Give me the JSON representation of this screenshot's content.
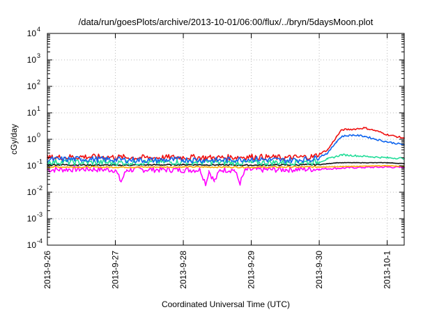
{
  "chart_data": {
    "type": "line",
    "title": "/data/run/goesPlots/archive/2013-10-01/06:00/flux/../bryn/5daysMoon.plot",
    "xlabel": "Coordinated Universal Time (UTC)",
    "ylabel": "cGy/day",
    "yscale": "log",
    "ylim": [
      0.0001,
      10000
    ],
    "xlim": [
      "2013-09-26 00:00",
      "2013-10-01 06:00"
    ],
    "grid": true,
    "legend": "none",
    "x_ticks": [
      "2013-9-26",
      "2013-9-27",
      "2013-9-28",
      "2013-9-29",
      "2013-9-30",
      "2013-10-1"
    ],
    "y_ticks": [
      {
        "base": "10",
        "exp": "-4",
        "value": 0.0001
      },
      {
        "base": "10",
        "exp": "-3",
        "value": 0.001
      },
      {
        "base": "10",
        "exp": "-2",
        "value": 0.01
      },
      {
        "base": "10",
        "exp": "-1",
        "value": 0.1
      },
      {
        "base": "10",
        "exp": "0",
        "value": 1
      },
      {
        "base": "10",
        "exp": "1",
        "value": 10
      },
      {
        "base": "10",
        "exp": "2",
        "value": 100
      },
      {
        "base": "10",
        "exp": "3",
        "value": 1000
      },
      {
        "base": "10",
        "exp": "4",
        "value": 10000
      }
    ],
    "series": [
      {
        "color": "#ff00ff",
        "points": [
          [
            "2013-09-26 00:00",
            0.07
          ],
          [
            "2013-09-26 12:00",
            0.075
          ],
          [
            "2013-09-27 00:00",
            0.07
          ],
          [
            "2013-09-27 02:00",
            0.025
          ],
          [
            "2013-09-27 04:00",
            0.07
          ],
          [
            "2013-09-27 12:00",
            0.072
          ],
          [
            "2013-09-28 00:00",
            0.07
          ],
          [
            "2013-09-28 06:00",
            0.07
          ],
          [
            "2013-09-28 08:00",
            0.02
          ],
          [
            "2013-09-28 09:00",
            0.065
          ],
          [
            "2013-09-28 11:00",
            0.025
          ],
          [
            "2013-09-28 13:00",
            0.07
          ],
          [
            "2013-09-28 18:00",
            0.07
          ],
          [
            "2013-09-28 20:00",
            0.022
          ],
          [
            "2013-09-28 22:00",
            0.07
          ],
          [
            "2013-09-29 12:00",
            0.072
          ],
          [
            "2013-09-30 00:00",
            0.075
          ],
          [
            "2013-09-30 12:00",
            0.085
          ],
          [
            "2013-10-01 00:00",
            0.09
          ],
          [
            "2013-10-01 06:00",
            0.085
          ]
        ]
      },
      {
        "color": "#ffaa00",
        "points": [
          [
            "2013-09-26 00:00",
            0.09
          ],
          [
            "2013-09-27 00:00",
            0.088
          ],
          [
            "2013-09-28 00:00",
            0.09
          ],
          [
            "2013-09-29 00:00",
            0.088
          ],
          [
            "2013-09-30 00:00",
            0.09
          ],
          [
            "2013-10-01 00:00",
            0.1
          ],
          [
            "2013-10-01 06:00",
            0.095
          ]
        ]
      },
      {
        "color": "#111111",
        "points": [
          [
            "2013-09-26 00:00",
            0.11
          ],
          [
            "2013-09-27 00:00",
            0.105
          ],
          [
            "2013-09-28 00:00",
            0.11
          ],
          [
            "2013-09-29 00:00",
            0.105
          ],
          [
            "2013-09-30 00:00",
            0.11
          ],
          [
            "2013-09-30 06:00",
            0.13
          ],
          [
            "2013-10-01 00:00",
            0.13
          ],
          [
            "2013-10-01 06:00",
            0.12
          ]
        ]
      },
      {
        "color": "#22dd99",
        "points": [
          [
            "2013-09-26 00:00",
            0.14
          ],
          [
            "2013-09-27 00:00",
            0.13
          ],
          [
            "2013-09-28 00:00",
            0.14
          ],
          [
            "2013-09-29 00:00",
            0.13
          ],
          [
            "2013-09-30 00:00",
            0.14
          ],
          [
            "2013-09-30 03:00",
            0.18
          ],
          [
            "2013-09-30 08:00",
            0.26
          ],
          [
            "2013-09-30 18:00",
            0.22
          ],
          [
            "2013-10-01 00:00",
            0.2
          ],
          [
            "2013-10-01 06:00",
            0.19
          ]
        ]
      },
      {
        "color": "#ee1111",
        "points": [
          [
            "2013-09-26 00:00",
            0.2
          ],
          [
            "2013-09-26 12:00",
            0.22
          ],
          [
            "2013-09-27 00:00",
            0.21
          ],
          [
            "2013-09-27 12:00",
            0.2
          ],
          [
            "2013-09-28 00:00",
            0.21
          ],
          [
            "2013-09-28 12:00",
            0.2
          ],
          [
            "2013-09-29 00:00",
            0.22
          ],
          [
            "2013-09-29 12:00",
            0.2
          ],
          [
            "2013-09-29 22:00",
            0.22
          ],
          [
            "2013-09-30 03:00",
            0.4
          ],
          [
            "2013-09-30 06:00",
            1.2
          ],
          [
            "2013-09-30 08:00",
            2.3
          ],
          [
            "2013-09-30 12:00",
            2.4
          ],
          [
            "2013-09-30 16:00",
            2.7
          ],
          [
            "2013-09-30 20:00",
            2.1
          ],
          [
            "2013-10-01 00:00",
            1.5
          ],
          [
            "2013-10-01 06:00",
            1.1
          ]
        ]
      },
      {
        "color": "#1166ee",
        "points": [
          [
            "2013-09-26 00:00",
            0.17
          ],
          [
            "2013-09-26 12:00",
            0.18
          ],
          [
            "2013-09-27 00:00",
            0.17
          ],
          [
            "2013-09-27 12:00",
            0.16
          ],
          [
            "2013-09-28 00:00",
            0.17
          ],
          [
            "2013-09-28 12:00",
            0.16
          ],
          [
            "2013-09-29 00:00",
            0.18
          ],
          [
            "2013-09-29 12:00",
            0.16
          ],
          [
            "2013-09-29 22:00",
            0.18
          ],
          [
            "2013-09-30 03:00",
            0.3
          ],
          [
            "2013-09-30 06:00",
            0.8
          ],
          [
            "2013-09-30 08:00",
            1.3
          ],
          [
            "2013-09-30 12:00",
            1.45
          ],
          [
            "2013-09-30 16:00",
            1.3
          ],
          [
            "2013-09-30 20:00",
            1.0
          ],
          [
            "2013-10-01 00:00",
            0.8
          ],
          [
            "2013-10-01 06:00",
            0.62
          ]
        ]
      }
    ]
  }
}
